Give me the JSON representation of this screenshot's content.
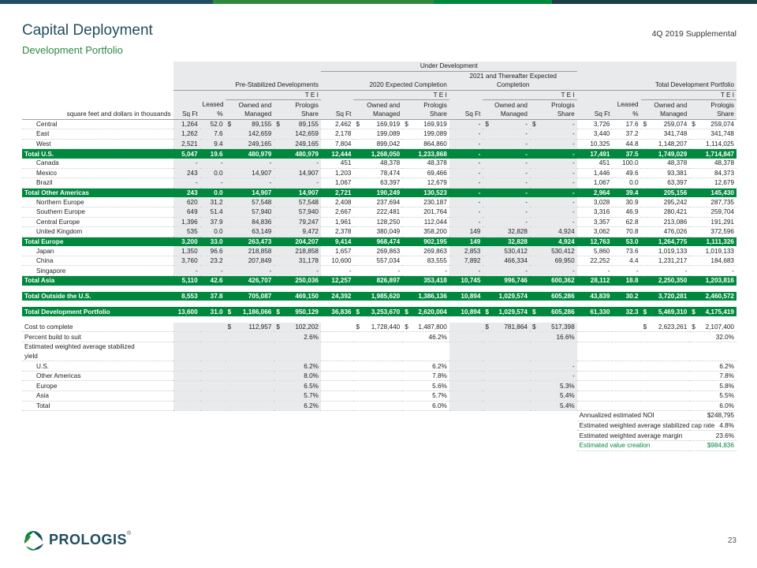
{
  "colors": {
    "brand_navy": "#214e5f",
    "brand_green": "#00883e",
    "band_gray": "#e8eaeb"
  },
  "top_bar_colors": [
    "#214e5f",
    "#2f8a3f",
    "#00883e",
    "#1f3d45"
  ],
  "header": {
    "title": "Capital Deployment",
    "subtitle": "Development Portfolio",
    "supplemental": "4Q 2019 Supplemental"
  },
  "table": {
    "group_under_dev": "Under Development",
    "group_prestab": "Pre-Stabilized Developments",
    "group_2020": "2020 Expected Completion",
    "group_2021_line1": "2021 and Thereafter Expected",
    "group_2021_line2": "Completion",
    "group_total": "Total Development Portfolio",
    "tei": "T E I",
    "units_label": "square feet and dollars in thousands",
    "col_sqft": "Sq Ft",
    "col_leased_1": "Leased",
    "col_leased_2": "%",
    "col_owned_1": "Owned and",
    "col_owned_2": "Managed",
    "col_share_1": "Prologis",
    "col_share_2": "Share",
    "rows": [
      {
        "type": "row",
        "label": "Central",
        "c": [
          "1,264",
          "52.0",
          "89,155",
          "89,155",
          "2,462",
          "169,919",
          "169,919",
          "-",
          "-",
          "-",
          "3,726",
          "17.6",
          "259,074",
          "259,074"
        ],
        "dollar": true
      },
      {
        "type": "row",
        "label": "East",
        "c": [
          "1,262",
          "7.6",
          "142,659",
          "142,659",
          "2,178",
          "199,089",
          "199,089",
          "-",
          "-",
          "-",
          "3,440",
          "37.2",
          "341,748",
          "341,748"
        ]
      },
      {
        "type": "row",
        "label": "West",
        "c": [
          "2,521",
          "9.4",
          "249,165",
          "249,165",
          "7,804",
          "899,042",
          "864,860",
          "-",
          "-",
          "-",
          "10,325",
          "44.8",
          "1,148,207",
          "1,114,025"
        ]
      },
      {
        "type": "total",
        "label": "Total U.S.",
        "c": [
          "5,047",
          "19.6",
          "480,979",
          "480,979",
          "12,444",
          "1,268,050",
          "1,233,868",
          "-",
          "-",
          "-",
          "17,491",
          "37.5",
          "1,749,029",
          "1,714,847"
        ]
      },
      {
        "type": "row",
        "label": "Canada",
        "c": [
          "-",
          "-",
          "-",
          "-",
          "451",
          "48,378",
          "48,378",
          "-",
          "-",
          "-",
          "451",
          "100.0",
          "48,378",
          "48,378"
        ]
      },
      {
        "type": "row",
        "label": "Mexico",
        "c": [
          "243",
          "0.0",
          "14,907",
          "14,907",
          "1,203",
          "78,474",
          "69,466",
          "-",
          "-",
          "-",
          "1,446",
          "49.6",
          "93,381",
          "84,373"
        ]
      },
      {
        "type": "row",
        "label": "Brazil",
        "c": [
          "-",
          "-",
          "-",
          "-",
          "1,067",
          "63,397",
          "12,679",
          "-",
          "-",
          "-",
          "1,067",
          "0.0",
          "63,397",
          "12,679"
        ]
      },
      {
        "type": "total",
        "label": "Total Other Americas",
        "c": [
          "243",
          "0.0",
          "14,907",
          "14,907",
          "2,721",
          "190,249",
          "130,523",
          "-",
          "-",
          "-",
          "2,964",
          "39.4",
          "205,156",
          "145,430"
        ]
      },
      {
        "type": "row",
        "label": "Northern Europe",
        "c": [
          "620",
          "31.2",
          "57,548",
          "57,548",
          "2,408",
          "237,694",
          "230,187",
          "-",
          "-",
          "-",
          "3,028",
          "30.9",
          "295,242",
          "287,735"
        ]
      },
      {
        "type": "row",
        "label": "Southern Europe",
        "c": [
          "649",
          "51.4",
          "57,940",
          "57,940",
          "2,667",
          "222,481",
          "201,764",
          "-",
          "-",
          "-",
          "3,316",
          "46.9",
          "280,421",
          "259,704"
        ]
      },
      {
        "type": "row",
        "label": "Central Europe",
        "c": [
          "1,396",
          "37.9",
          "84,836",
          "79,247",
          "1,961",
          "128,250",
          "112,044",
          "-",
          "-",
          "-",
          "3,357",
          "62.8",
          "213,086",
          "191,291"
        ]
      },
      {
        "type": "row",
        "label": "United Kingdom",
        "c": [
          "535",
          "0.0",
          "63,149",
          "9,472",
          "2,378",
          "380,049",
          "358,200",
          "149",
          "32,828",
          "4,924",
          "3,062",
          "70.8",
          "476,026",
          "372,596"
        ]
      },
      {
        "type": "total",
        "label": "Total Europe",
        "c": [
          "3,200",
          "33.0",
          "263,473",
          "204,207",
          "9,414",
          "968,474",
          "902,195",
          "149",
          "32,828",
          "4,924",
          "12,763",
          "53.0",
          "1,264,775",
          "1,111,326"
        ]
      },
      {
        "type": "row",
        "label": "Japan",
        "c": [
          "1,350",
          "96.6",
          "218,858",
          "218,858",
          "1,657",
          "269,863",
          "269,863",
          "2,853",
          "530,412",
          "530,412",
          "5,860",
          "73.6",
          "1,019,133",
          "1,019,133"
        ]
      },
      {
        "type": "row",
        "label": "China",
        "c": [
          "3,760",
          "23.2",
          "207,849",
          "31,178",
          "10,600",
          "557,034",
          "83,555",
          "7,892",
          "466,334",
          "69,950",
          "22,252",
          "4.4",
          "1,231,217",
          "184,683"
        ]
      },
      {
        "type": "row",
        "label": "Singapore",
        "c": [
          "-",
          "-",
          "-",
          "-",
          "-",
          "-",
          "-",
          "-",
          "-",
          "-",
          "-",
          "-",
          "-",
          "-"
        ]
      },
      {
        "type": "total",
        "label": "Total Asia",
        "c": [
          "5,110",
          "42.6",
          "426,707",
          "250,036",
          "12,257",
          "826,897",
          "353,418",
          "10,745",
          "996,746",
          "600,362",
          "28,112",
          "18.8",
          "2,250,350",
          "1,203,816"
        ]
      },
      {
        "type": "gap"
      },
      {
        "type": "total",
        "label": "Total Outside the U.S.",
        "c": [
          "8,553",
          "37.8",
          "705,087",
          "469,150",
          "24,392",
          "1,985,620",
          "1,386,136",
          "10,894",
          "1,029,574",
          "605,286",
          "43,839",
          "30.2",
          "3,720,281",
          "2,460,572"
        ]
      },
      {
        "type": "gap"
      },
      {
        "type": "total",
        "label": "Total Development Portfolio",
        "c": [
          "13,600",
          "31.0",
          "1,186,066",
          "950,129",
          "36,836",
          "3,253,670",
          "2,620,004",
          "10,894",
          "1,029,574",
          "605,286",
          "61,330",
          "32.3",
          "5,469,310",
          "4,175,419"
        ],
        "dollar": true
      },
      {
        "type": "gap"
      }
    ],
    "cost_label": "Cost to complete",
    "cost": {
      "pre_owned": "112,957",
      "pre_share": "102,202",
      "c20_owned": "1,728,440",
      "c20_share": "1,487,800",
      "c21_owned": "781,864",
      "c21_share": "517,398",
      "tot_owned": "2,623,261",
      "tot_share": "2,107,400"
    },
    "pbs_label": "Percent build to suit",
    "pbs": {
      "pre": "2.6%",
      "c20": "46.2%",
      "c21": "16.6%",
      "tot": "32.0%"
    },
    "ewasy_label_1": "Estimated weighted average stabilized",
    "ewasy_label_2": "yield",
    "yields": [
      {
        "label": "U.S.",
        "pre": "6.2%",
        "c20": "6.2%",
        "c21": "-",
        "tot": "6.2%"
      },
      {
        "label": "Other Americas",
        "pre": "8.0%",
        "c20": "7.8%",
        "c21": "-",
        "tot": "7.8%"
      },
      {
        "label": "Europe",
        "pre": "6.5%",
        "c20": "5.6%",
        "c21": "5.3%",
        "tot": "5.8%"
      },
      {
        "label": "Asia",
        "pre": "5.7%",
        "c20": "5.7%",
        "c21": "5.4%",
        "tot": "5.5%"
      },
      {
        "label": "Total",
        "pre": "6.2%",
        "c20": "6.0%",
        "c21": "5.4%",
        "tot": "6.0%"
      }
    ],
    "summary": [
      {
        "label": "Annualized estimated NOI",
        "value": "$248,795",
        "highlight": false
      },
      {
        "label": "Estimated weighted average stabilized cap rate",
        "value": "4.8%",
        "highlight": false
      },
      {
        "label": "Estimated weighted average margin",
        "value": "23.6%",
        "highlight": false
      },
      {
        "label": "Estimated value creation",
        "value": "$984,836",
        "highlight": true
      }
    ]
  },
  "footer": {
    "logo_text": "PROLOGIS",
    "logo_mark": "®",
    "page_number": "23"
  }
}
